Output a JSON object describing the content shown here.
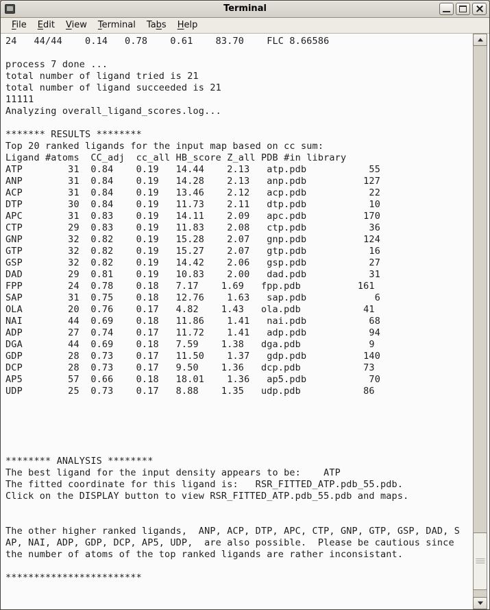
{
  "window": {
    "title": "Terminal",
    "controls": [
      "minimize",
      "maximize",
      "close"
    ]
  },
  "menu": {
    "items": [
      {
        "label": "File",
        "accel": 0
      },
      {
        "label": "Edit",
        "accel": 0
      },
      {
        "label": "View",
        "accel": 0
      },
      {
        "label": "Terminal",
        "accel": 0
      },
      {
        "label": "Tabs",
        "accel": 2
      },
      {
        "label": "Help",
        "accel": 0
      }
    ]
  },
  "colors": {
    "titlebar-bg": "#d3cfc8",
    "menubar-bg": "#eeebe5",
    "terminal-bg": "#fbfbfb",
    "terminal-text": "#1d1d1d",
    "scrollbar-trough": "#d6d2c8",
    "scrollbar-thumb": "#f1efe9",
    "frame-border": "#45413b"
  },
  "terminal": {
    "pre_lines": [
      "24   44/44    0.14   0.78    0.61    83.70    FLC 8.66586",
      "",
      "process 7 done ...",
      "total number of ligand tried is 21",
      "total number of ligand succeeded is 21",
      "11111",
      "Analyzing overall_ligand_scores.log...",
      "",
      "******* RESULTS ********",
      "Top 20 ranked ligands for the input map based on cc sum:"
    ],
    "results_table": {
      "header_line": "Ligand #atoms  CC_adj  cc_all HB_score Z_all PDB #in library",
      "columns": [
        "Ligand",
        "#atoms",
        "CC_adj",
        "cc_all",
        "HB_score",
        "Z_all",
        "PDB",
        "#in library"
      ],
      "rows": [
        [
          "ATP",
          "31",
          "0.84",
          "0.19",
          "14.44",
          "2.13",
          "atp.pdb",
          "55"
        ],
        [
          "ANP",
          "31",
          "0.84",
          "0.19",
          "14.28",
          "2.13",
          "anp.pdb",
          "127"
        ],
        [
          "ACP",
          "31",
          "0.84",
          "0.19",
          "13.46",
          "2.12",
          "acp.pdb",
          "22"
        ],
        [
          "DTP",
          "30",
          "0.84",
          "0.19",
          "11.73",
          "2.11",
          "dtp.pdb",
          "10"
        ],
        [
          "APC",
          "31",
          "0.83",
          "0.19",
          "14.11",
          "2.09",
          "apc.pdb",
          "170"
        ],
        [
          "CTP",
          "29",
          "0.83",
          "0.19",
          "11.83",
          "2.08",
          "ctp.pdb",
          "36"
        ],
        [
          "GNP",
          "32",
          "0.82",
          "0.19",
          "15.28",
          "2.07",
          "gnp.pdb",
          "124"
        ],
        [
          "GTP",
          "32",
          "0.82",
          "0.19",
          "15.27",
          "2.07",
          "gtp.pdb",
          "16"
        ],
        [
          "GSP",
          "32",
          "0.82",
          "0.19",
          "14.42",
          "2.06",
          "gsp.pdb",
          "27"
        ],
        [
          "DAD",
          "29",
          "0.81",
          "0.19",
          "10.83",
          "2.00",
          "dad.pdb",
          "31"
        ],
        [
          "FPP",
          "24",
          "0.78",
          "0.18",
          "7.17",
          "1.69",
          "fpp.pdb",
          "161"
        ],
        [
          "SAP",
          "31",
          "0.75",
          "0.18",
          "12.76",
          "1.63",
          "sap.pdb",
          "6"
        ],
        [
          "OLA",
          "20",
          "0.76",
          "0.17",
          "4.82",
          "1.43",
          "ola.pdb",
          "41"
        ],
        [
          "NAI",
          "44",
          "0.69",
          "0.18",
          "11.86",
          "1.41",
          "nai.pdb",
          "68"
        ],
        [
          "ADP",
          "27",
          "0.74",
          "0.17",
          "11.72",
          "1.41",
          "adp.pdb",
          "94"
        ],
        [
          "DGA",
          "44",
          "0.69",
          "0.18",
          "7.59",
          "1.38",
          "dga.pdb",
          "9"
        ],
        [
          "GDP",
          "28",
          "0.73",
          "0.17",
          "11.50",
          "1.37",
          "gdp.pdb",
          "140"
        ],
        [
          "DCP",
          "28",
          "0.73",
          "0.17",
          "9.50",
          "1.36",
          "dcp.pdb",
          "73"
        ],
        [
          "AP5",
          "57",
          "0.66",
          "0.18",
          "18.01",
          "1.36",
          "ap5.pdb",
          "70"
        ],
        [
          "UDP",
          "25",
          "0.73",
          "0.17",
          "8.88",
          "1.35",
          "udp.pdb",
          "86"
        ]
      ]
    },
    "post_lines": [
      "",
      "",
      "",
      "",
      "",
      "******** ANALYSIS ********",
      "The best ligand for the input density appears to be:    ATP",
      "The fitted coordinate for this ligand is:   RSR_FITTED_ATP.pdb_55.pdb.",
      "Click on the DISPLAY button to view RSR_FITTED_ATP.pdb_55.pdb and maps.",
      "",
      "",
      "The other higher ranked ligands,  ANP, ACP, DTP, APC, CTP, GNP, GTP, GSP, DAD, S",
      "AP, NAI, ADP, GDP, DCP, AP5, UDP,  are also possible.  Please be cautious since",
      "the number of atoms of the top ranked ligands are rather inconsistant.",
      "",
      "************************"
    ]
  }
}
